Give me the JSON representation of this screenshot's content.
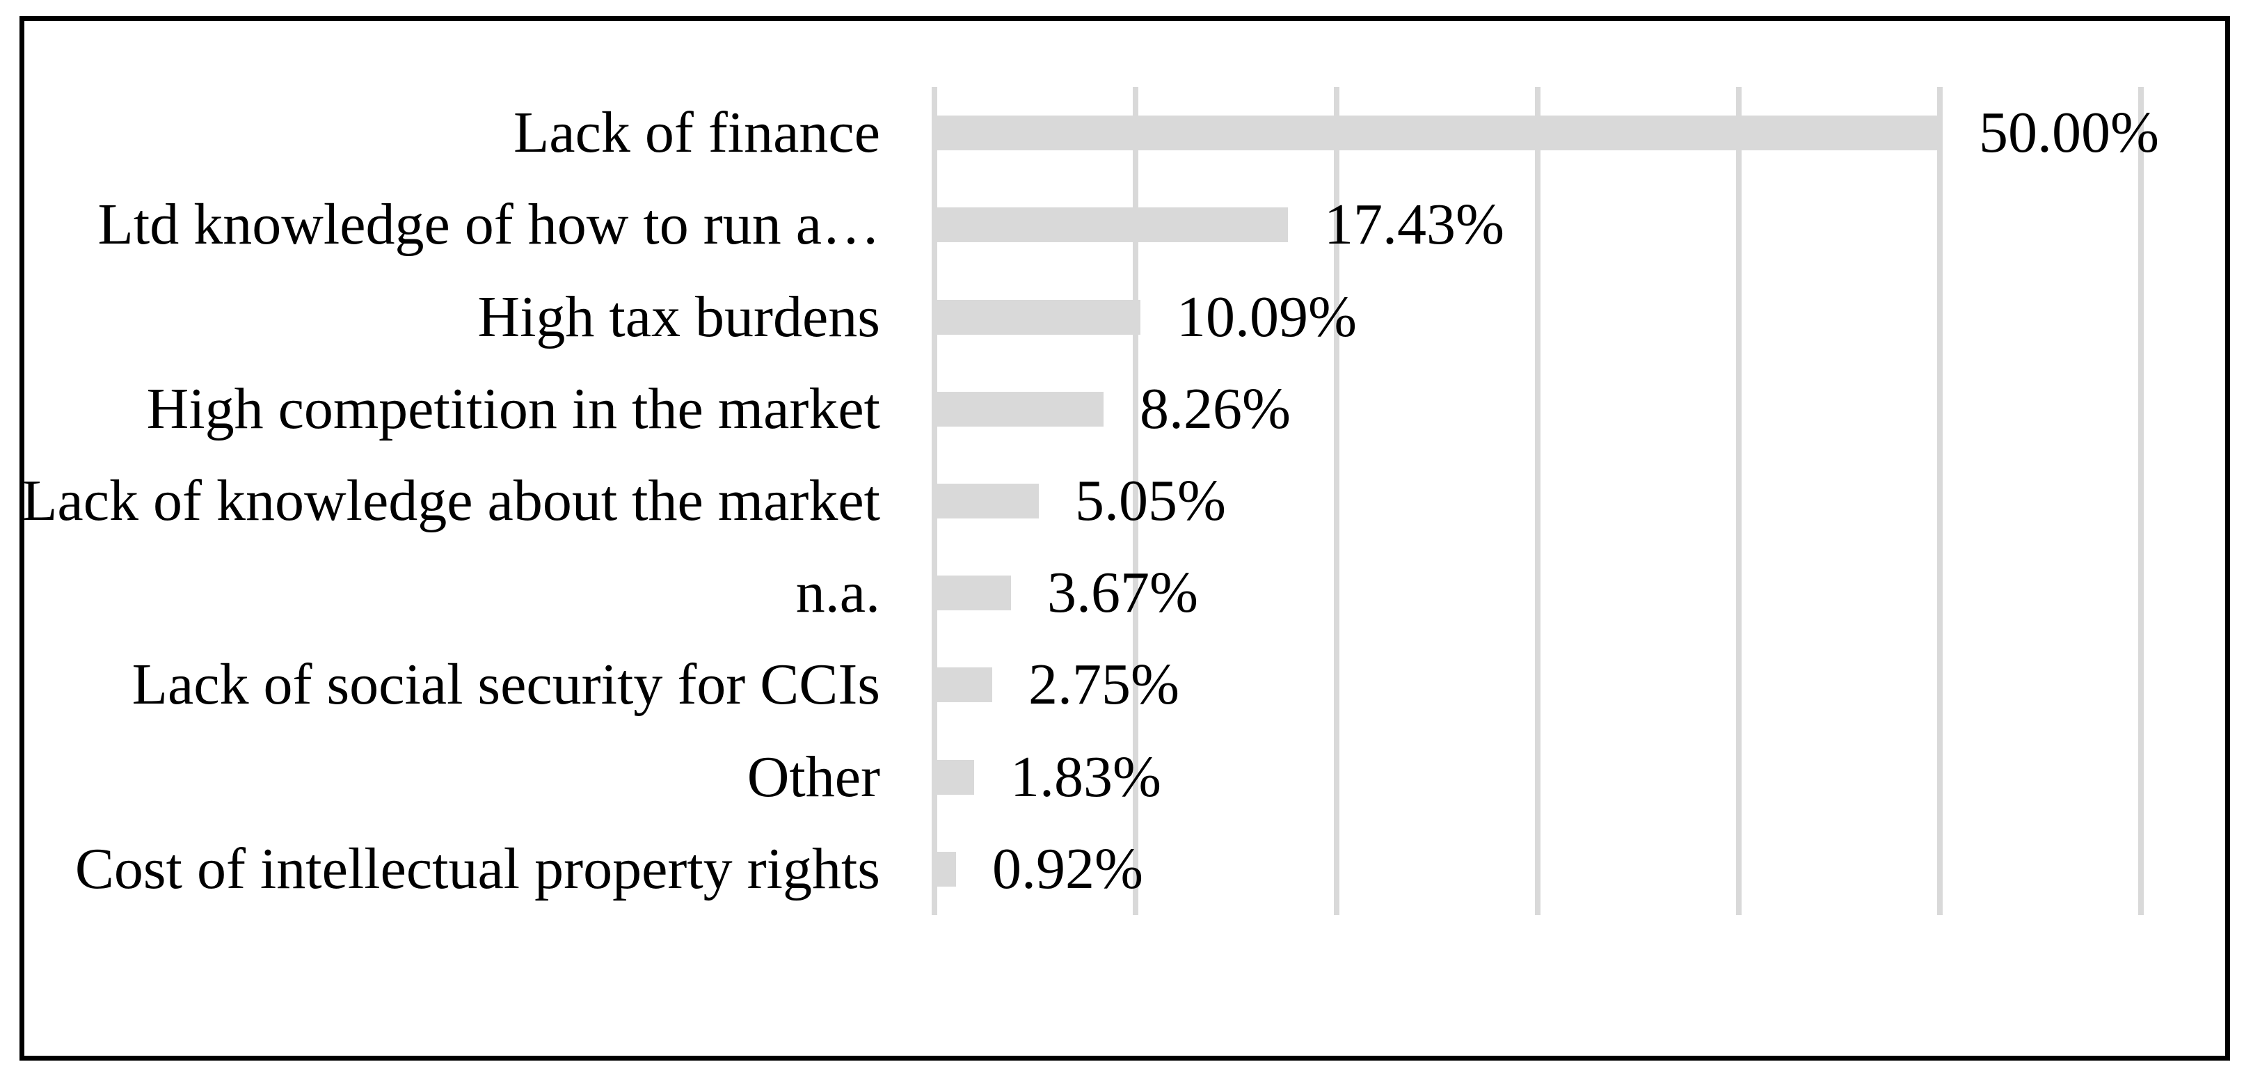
{
  "figure": {
    "background_color": "#ffffff",
    "border_color": "#000000"
  },
  "chart_data": {
    "type": "bar",
    "orientation": "horizontal",
    "title": "",
    "xlabel": "",
    "ylabel": "",
    "categories": [
      "Lack of finance",
      "Ltd knowledge of how to run a…",
      "High tax burdens",
      "High competition in the market",
      "Lack of knowledge about the market",
      "n.a.",
      "Lack of social security for CCIs",
      "Other",
      "Cost of intellectual property rights"
    ],
    "values": [
      50.0,
      17.43,
      10.09,
      8.26,
      5.05,
      3.67,
      2.75,
      1.83,
      0.92
    ],
    "value_labels": [
      "50.00%",
      "17.43%",
      "10.09%",
      "8.26%",
      "5.05%",
      "3.67%",
      "2.75%",
      "1.83%",
      "0.92%"
    ],
    "xlim": [
      0,
      60
    ],
    "gridline_step_percent": 10,
    "grid": "vertical-only",
    "axis_tick_labels_visible": false,
    "legend_position": "none",
    "bar_color": "#d9d9d9",
    "gridline_color": "#d9d9d9",
    "label_color": "#000000"
  }
}
